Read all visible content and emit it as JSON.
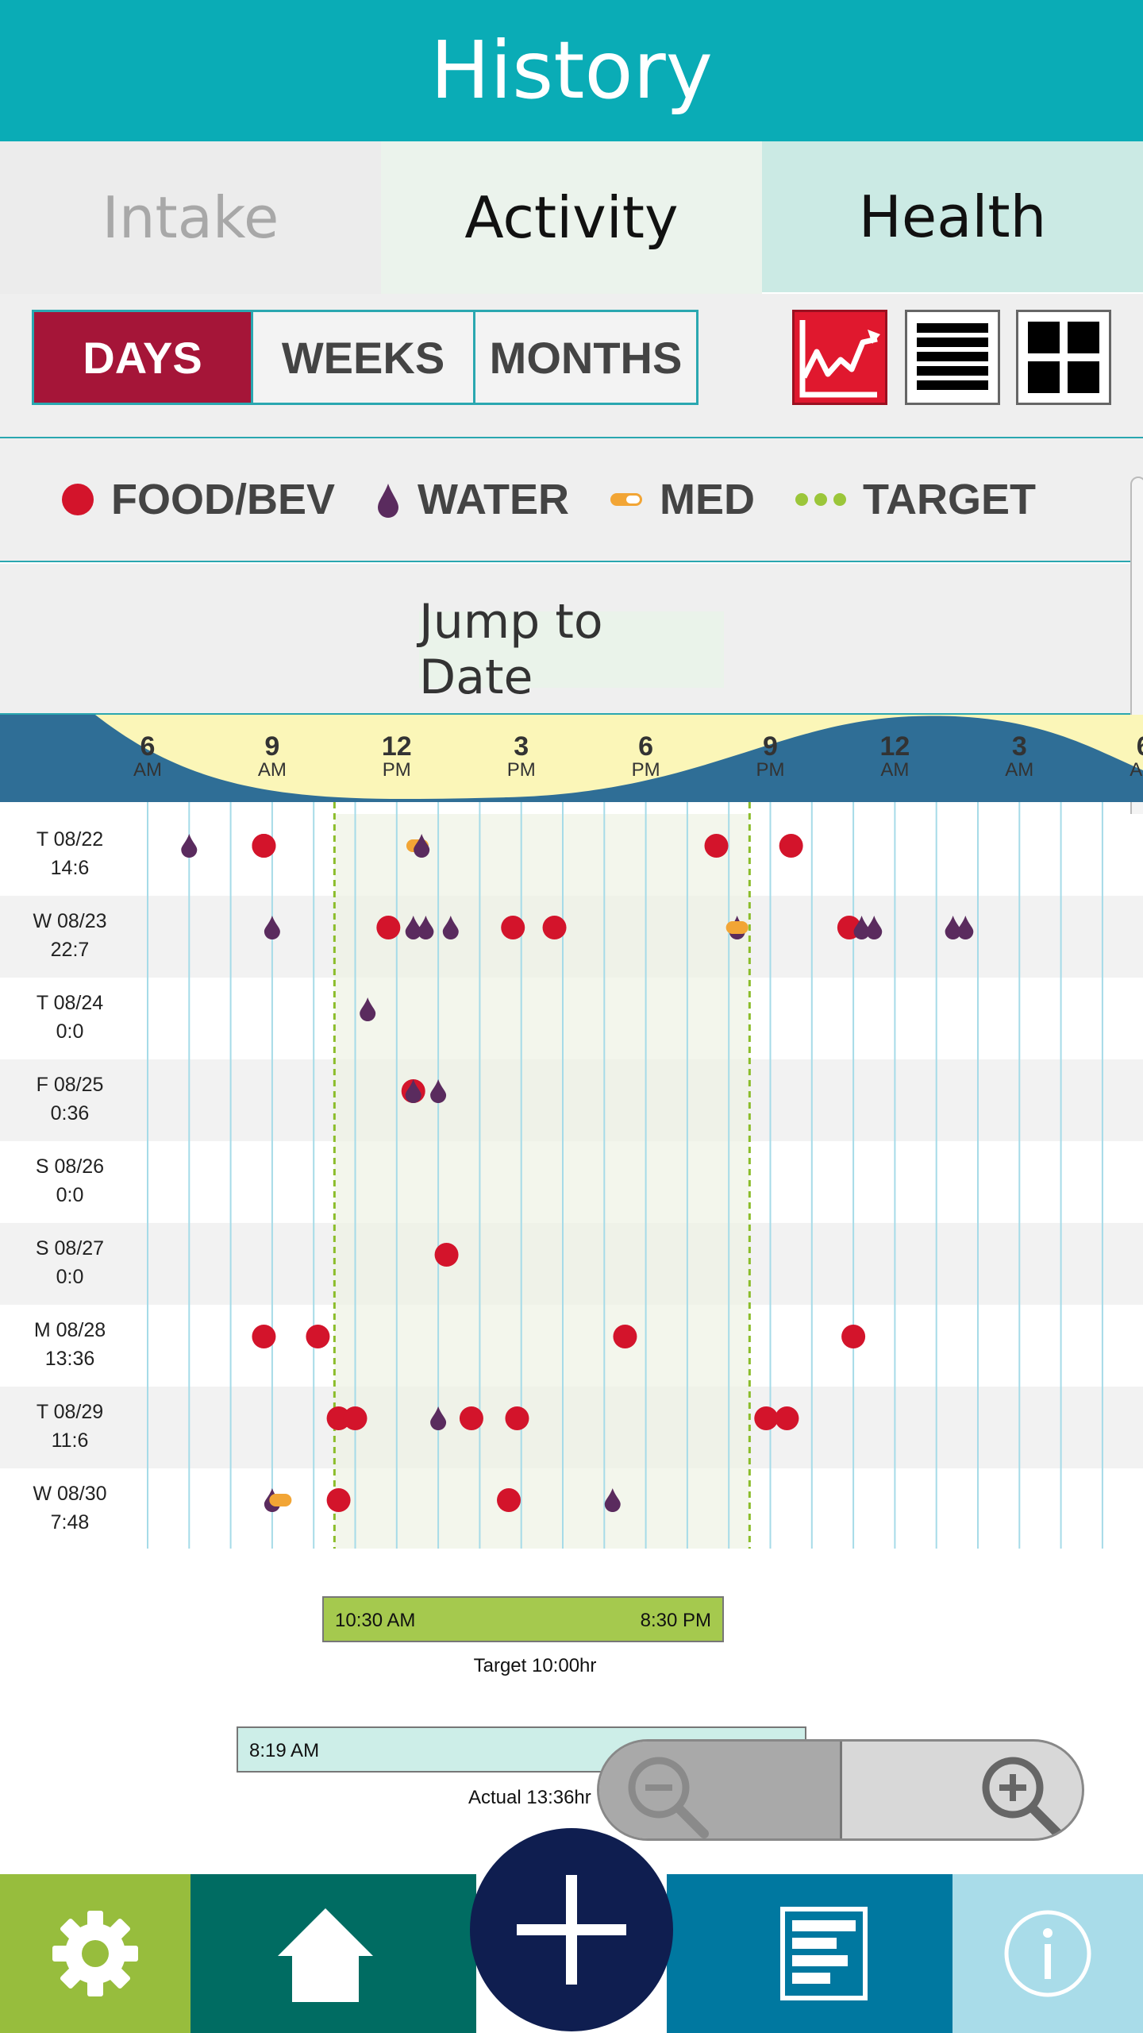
{
  "header": {
    "title": "History"
  },
  "tabs": [
    {
      "label": "Intake"
    },
    {
      "label": "Activity"
    },
    {
      "label": "Health"
    }
  ],
  "toolbar": {
    "periods": [
      {
        "label": "DAYS",
        "selected": true
      },
      {
        "label": "WEEKS"
      },
      {
        "label": "MONTHS"
      }
    ],
    "views": [
      {
        "icon": "line-chart-icon",
        "selected": true
      },
      {
        "icon": "list-icon"
      },
      {
        "icon": "grid-icon"
      }
    ]
  },
  "legend": [
    {
      "label": "FOOD/BEV",
      "icon": "food-dot-icon",
      "color": "#d3142b"
    },
    {
      "label": "WATER",
      "icon": "water-drop-icon",
      "color": "#5a2b5e"
    },
    {
      "label": "MED",
      "icon": "pill-icon",
      "color": "#f2a535"
    },
    {
      "label": "TARGET",
      "icon": "target-dots-icon",
      "color": "#9bc63a"
    }
  ],
  "jump": {
    "label": "Jump to Date"
  },
  "axis": [
    {
      "hour": "6",
      "ampm": "AM"
    },
    {
      "hour": "9",
      "ampm": "AM"
    },
    {
      "hour": "12",
      "ampm": "PM"
    },
    {
      "hour": "3",
      "ampm": "PM"
    },
    {
      "hour": "6",
      "ampm": "PM"
    },
    {
      "hour": "9",
      "ampm": "PM"
    },
    {
      "hour": "12",
      "ampm": "AM"
    },
    {
      "hour": "3",
      "ampm": "AM"
    },
    {
      "hour": "6",
      "ampm": "AM"
    }
  ],
  "rows": [
    {
      "day": "T  08/22",
      "total": "14:6",
      "events": [
        {
          "t": 7.0,
          "k": "water"
        },
        {
          "t": 8.8,
          "k": "food"
        },
        {
          "t": 8.8,
          "k": "food"
        },
        {
          "t": 12.5,
          "k": "med"
        },
        {
          "t": 12.6,
          "k": "water"
        },
        {
          "t": 19.7,
          "k": "food"
        },
        {
          "t": 21.5,
          "k": "food"
        }
      ]
    },
    {
      "day": "W  08/23",
      "total": "22:7",
      "events": [
        {
          "t": 9.0,
          "k": "water"
        },
        {
          "t": 11.8,
          "k": "food"
        },
        {
          "t": 12.4,
          "k": "water"
        },
        {
          "t": 12.7,
          "k": "water"
        },
        {
          "t": 13.3,
          "k": "water"
        },
        {
          "t": 14.8,
          "k": "food"
        },
        {
          "t": 15.8,
          "k": "food"
        },
        {
          "t": 20.2,
          "k": "water"
        },
        {
          "t": 20.2,
          "k": "med"
        },
        {
          "t": 22.9,
          "k": "food"
        },
        {
          "t": 23.2,
          "k": "water"
        },
        {
          "t": 23.5,
          "k": "water"
        },
        {
          "t": 25.4,
          "k": "water"
        },
        {
          "t": 25.7,
          "k": "water"
        }
      ]
    },
    {
      "day": "T  08/24",
      "total": "0:0",
      "events": [
        {
          "t": 11.3,
          "k": "water"
        }
      ]
    },
    {
      "day": "F  08/25",
      "total": "0:36",
      "events": [
        {
          "t": 12.4,
          "k": "food"
        },
        {
          "t": 12.4,
          "k": "water"
        },
        {
          "t": 13.0,
          "k": "water"
        }
      ]
    },
    {
      "day": "S  08/26",
      "total": "0:0",
      "events": []
    },
    {
      "day": "S  08/27",
      "total": "0:0",
      "events": [
        {
          "t": 13.2,
          "k": "food"
        }
      ]
    },
    {
      "day": "M  08/28",
      "total": "13:36",
      "events": [
        {
          "t": 8.8,
          "k": "food"
        },
        {
          "t": 10.1,
          "k": "food"
        },
        {
          "t": 17.5,
          "k": "food"
        },
        {
          "t": 23.0,
          "k": "food"
        }
      ]
    },
    {
      "day": "T  08/29",
      "total": "11:6",
      "events": [
        {
          "t": 10.6,
          "k": "food"
        },
        {
          "t": 11.0,
          "k": "food"
        },
        {
          "t": 13.0,
          "k": "water"
        },
        {
          "t": 13.8,
          "k": "food"
        },
        {
          "t": 14.9,
          "k": "food"
        },
        {
          "t": 20.9,
          "k": "food"
        },
        {
          "t": 21.4,
          "k": "food"
        }
      ]
    },
    {
      "day": "W  08/30",
      "total": "7:48",
      "events": [
        {
          "t": 9.0,
          "k": "water"
        },
        {
          "t": 9.2,
          "k": "med"
        },
        {
          "t": 10.6,
          "k": "food"
        },
        {
          "t": 14.7,
          "k": "food"
        },
        {
          "t": 17.2,
          "k": "water"
        }
      ]
    }
  ],
  "target": {
    "start": "10:30 AM",
    "end": "8:30 PM",
    "label": "Target 10:00hr",
    "start_hour": 10.5,
    "end_hour": 20.5
  },
  "actual": {
    "start": "8:19 AM",
    "label": "Actual 13:36hr"
  },
  "bottom_nav": [
    {
      "icon": "gear-icon",
      "color": "#97bd3d"
    },
    {
      "icon": "home-icon",
      "color": "#006c62"
    },
    {
      "icon": "plus-icon",
      "color": "#0f1e50"
    },
    {
      "icon": "report-icon",
      "color": "#0078a0"
    },
    {
      "icon": "info-icon",
      "color": "#a9dce9"
    }
  ]
}
